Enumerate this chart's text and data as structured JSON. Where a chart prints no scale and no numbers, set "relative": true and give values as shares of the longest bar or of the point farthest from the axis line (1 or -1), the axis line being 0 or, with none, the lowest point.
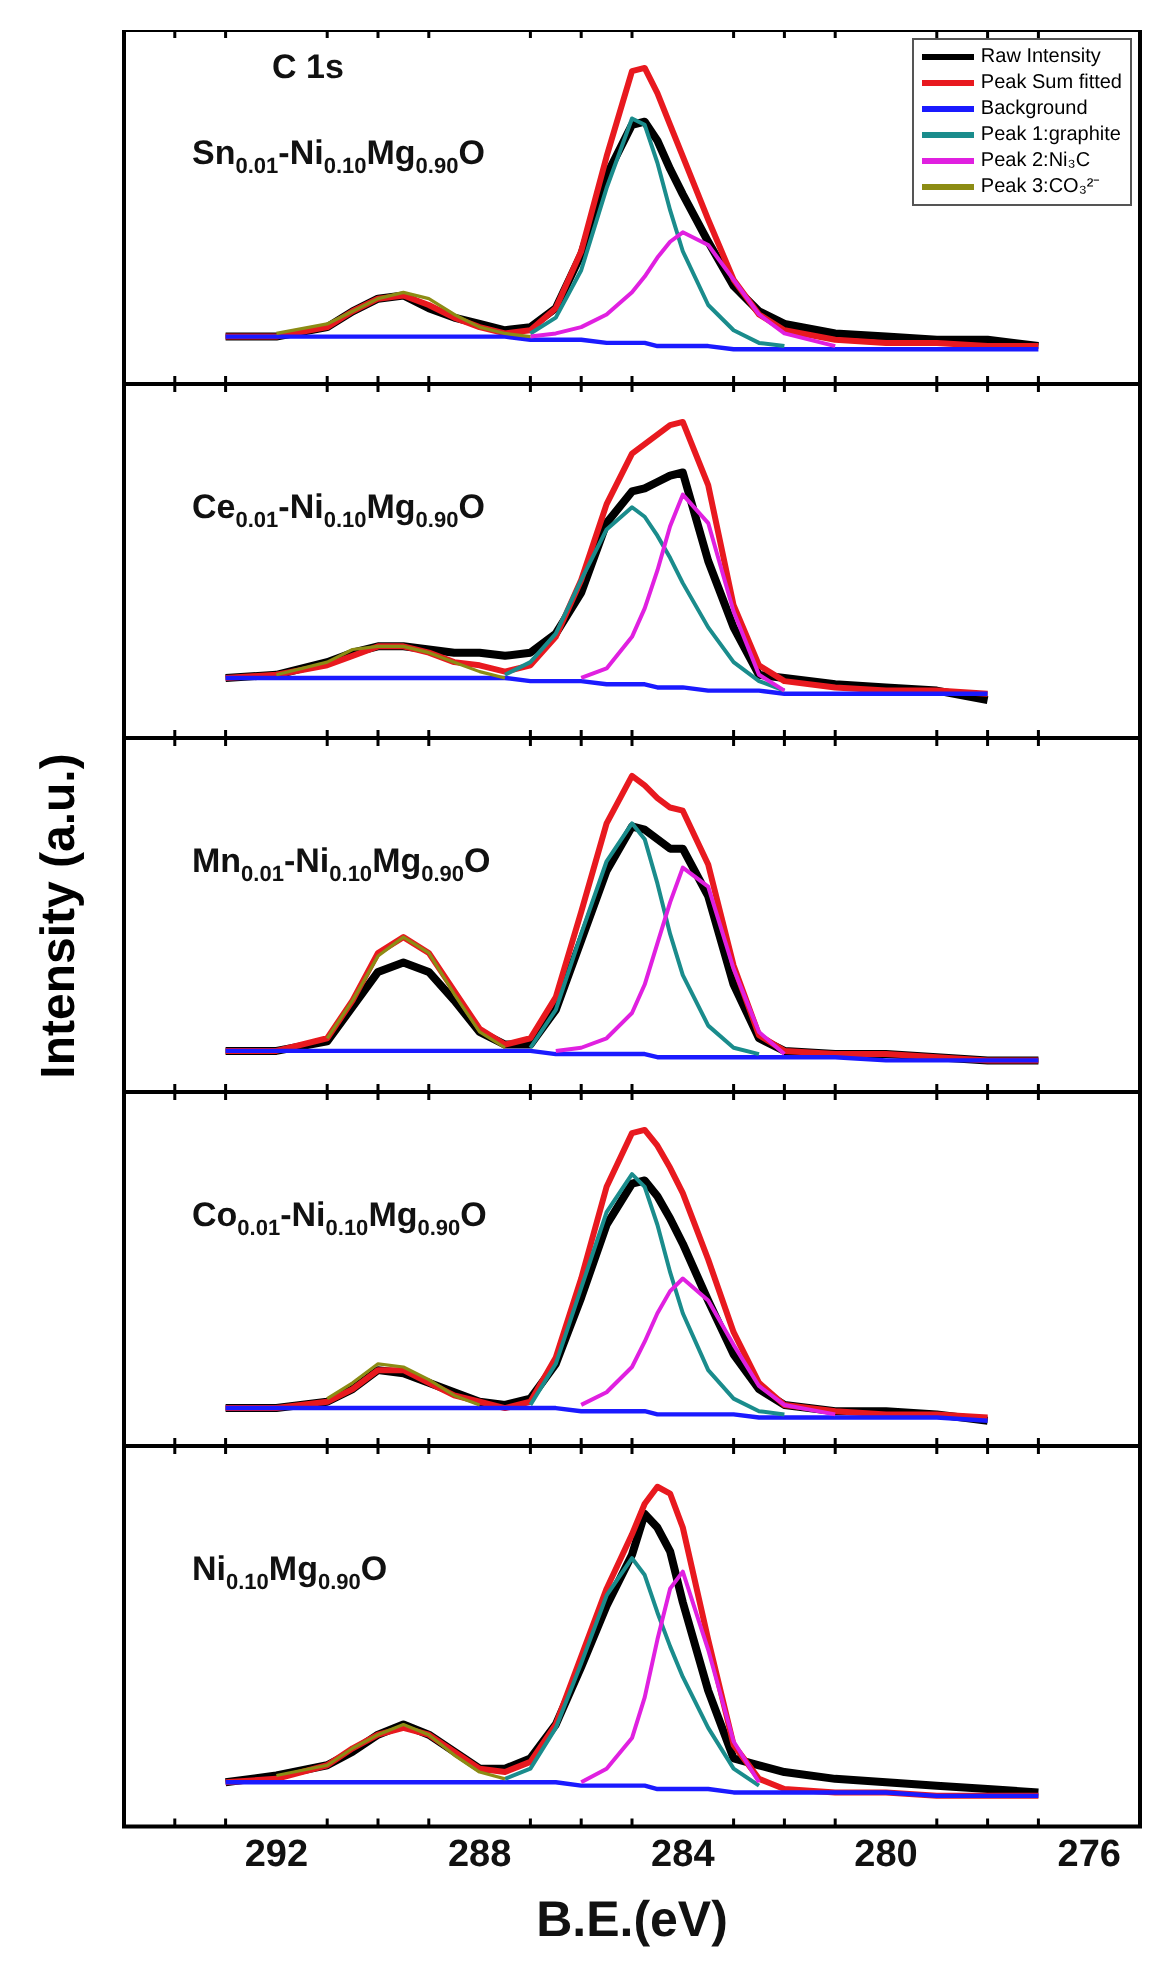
{
  "chart_data": [
    {
      "type": "line",
      "relative": true,
      "tick_labels": false,
      "legend": "top right",
      "annotations": [
        "C 1s",
        "Sn$_{0.01}$-Ni$_{0.10}$Mg$_{0.90}$O"
      ],
      "x": [
        293,
        292,
        291,
        290.5,
        290,
        289.5,
        289,
        288.5,
        288,
        287.5,
        287,
        286.5,
        286,
        285.5,
        285,
        284.75,
        284.5,
        284.25,
        284,
        283.5,
        283,
        282.5,
        282,
        281,
        280,
        279,
        278,
        277
      ],
      "xlim": [
        295,
        275
      ],
      "xticks": [
        {
          "value": 294,
          "label": null
        },
        {
          "value": 293,
          "label": null
        },
        292,
        {
          "value": 291,
          "label": null
        },
        {
          "value": 290,
          "label": null
        },
        {
          "value": 289,
          "label": null
        },
        288,
        {
          "value": 287,
          "label": null
        },
        {
          "value": 286,
          "label": null
        },
        {
          "value": 285,
          "label": null
        },
        284,
        {
          "value": 283,
          "label": null
        },
        {
          "value": 282,
          "label": null
        },
        {
          "value": 281,
          "label": null
        },
        280,
        {
          "value": 279,
          "label": null
        },
        {
          "value": 278,
          "label": null
        },
        {
          "value": 277,
          "label": null
        },
        276
      ],
      "series": [
        {
          "name": "Raw Intensity",
          "color": "#000000",
          "values": [
            0.15,
            0.15,
            0.18,
            0.23,
            0.27,
            0.28,
            0.24,
            0.21,
            0.19,
            0.17,
            0.18,
            0.24,
            0.41,
            0.66,
            0.82,
            0.83,
            0.77,
            0.68,
            0.6,
            0.45,
            0.31,
            0.23,
            0.19,
            0.16,
            0.15,
            0.14,
            0.14,
            0.12
          ]
        },
        {
          "name": "Peak Sum fitted",
          "color": "#e8191f",
          "values": [
            0.15,
            0.15,
            0.18,
            0.23,
            0.27,
            0.28,
            0.25,
            0.21,
            0.18,
            0.16,
            0.17,
            0.24,
            0.42,
            0.72,
            0.99,
            1.0,
            0.92,
            0.82,
            0.72,
            0.52,
            0.33,
            0.22,
            0.17,
            0.14,
            0.13,
            0.13,
            0.12,
            0.12
          ]
        },
        {
          "name": "Background",
          "color": "#1a1aff",
          "values": [
            0.15,
            0.15,
            0.15,
            0.15,
            0.15,
            0.15,
            0.15,
            0.15,
            0.15,
            0.15,
            0.14,
            0.14,
            0.14,
            0.13,
            0.13,
            0.13,
            0.12,
            0.12,
            0.12,
            0.12,
            0.11,
            0.11,
            0.11,
            0.11,
            0.11,
            0.11,
            0.11,
            0.11
          ]
        },
        {
          "name": "Peak 1:graphite",
          "color": "#1a8c8c",
          "values": [
            null,
            null,
            null,
            null,
            null,
            null,
            null,
            null,
            null,
            null,
            0.16,
            0.21,
            0.36,
            0.62,
            0.84,
            0.82,
            0.7,
            0.55,
            0.42,
            0.25,
            0.17,
            0.13,
            0.12,
            null,
            null,
            null,
            null,
            null
          ]
        },
        {
          "name": "Peak 2:Ni₃C",
          "color": "#e020e0",
          "values": [
            null,
            null,
            null,
            null,
            null,
            null,
            null,
            null,
            null,
            null,
            0.15,
            0.16,
            0.18,
            0.22,
            0.29,
            0.34,
            0.4,
            0.45,
            0.48,
            0.44,
            0.33,
            0.22,
            0.16,
            0.12,
            null,
            null,
            null,
            null
          ]
        },
        {
          "name": "Peak 3:CO₃²⁻",
          "color": "#8c8c14",
          "values": [
            null,
            0.16,
            0.19,
            0.23,
            0.27,
            0.29,
            0.27,
            0.22,
            0.18,
            0.16,
            0.15,
            null,
            null,
            null,
            null,
            null,
            null,
            null,
            null,
            null,
            null,
            null,
            null,
            null,
            null,
            null,
            null,
            null
          ]
        }
      ]
    },
    {
      "type": "line",
      "relative": true,
      "tick_labels": false,
      "annotations": [
        "Ce$_{0.01}$-Ni$_{0.10}$Mg$_{0.90}$O"
      ],
      "x": [
        293,
        292,
        291,
        290.5,
        290,
        289.5,
        289,
        288.5,
        288,
        287.5,
        287,
        286.5,
        286,
        285.5,
        285,
        284.75,
        284.5,
        284.25,
        284,
        283.5,
        283,
        282.5,
        282,
        281,
        280,
        279,
        278
      ],
      "xlim": [
        295,
        275
      ],
      "xticks": [
        {
          "value": 294,
          "label": null
        },
        {
          "value": 293,
          "label": null
        },
        292,
        {
          "value": 291,
          "label": null
        },
        {
          "value": 290,
          "label": null
        },
        {
          "value": 289,
          "label": null
        },
        288,
        {
          "value": 287,
          "label": null
        },
        {
          "value": 286,
          "label": null
        },
        {
          "value": 285,
          "label": null
        },
        284,
        {
          "value": 283,
          "label": null
        },
        {
          "value": 282,
          "label": null
        },
        {
          "value": 281,
          "label": null
        },
        280,
        {
          "value": 279,
          "label": null
        },
        {
          "value": 278,
          "label": null
        },
        {
          "value": 277,
          "label": null
        },
        276
      ],
      "series": [
        {
          "color": "#000000",
          "values": [
            0.19,
            0.2,
            0.24,
            0.27,
            0.29,
            0.29,
            0.28,
            0.27,
            0.27,
            0.26,
            0.27,
            0.33,
            0.46,
            0.68,
            0.78,
            0.79,
            0.81,
            0.83,
            0.84,
            0.56,
            0.35,
            0.2,
            0.19,
            0.17,
            0.16,
            0.15,
            0.12
          ]
        },
        {
          "color": "#e8191f",
          "values": [
            0.19,
            0.2,
            0.23,
            0.26,
            0.29,
            0.29,
            0.27,
            0.24,
            0.23,
            0.21,
            0.23,
            0.32,
            0.5,
            0.74,
            0.9,
            0.93,
            0.96,
            0.99,
            1.0,
            0.8,
            0.42,
            0.23,
            0.18,
            0.16,
            0.15,
            0.15,
            0.14
          ]
        },
        {
          "color": "#1a1aff",
          "values": [
            0.19,
            0.19,
            0.19,
            0.19,
            0.19,
            0.19,
            0.19,
            0.19,
            0.19,
            0.19,
            0.18,
            0.18,
            0.18,
            0.17,
            0.17,
            0.17,
            0.16,
            0.16,
            0.16,
            0.15,
            0.15,
            0.15,
            0.14,
            0.14,
            0.14,
            0.14,
            0.14
          ]
        },
        {
          "color": "#1a8c8c",
          "values": [
            null,
            null,
            null,
            null,
            null,
            null,
            null,
            null,
            null,
            0.2,
            0.24,
            0.33,
            0.5,
            0.66,
            0.73,
            0.7,
            0.64,
            0.57,
            0.49,
            0.35,
            0.24,
            0.18,
            0.15,
            null,
            null,
            null,
            null
          ]
        },
        {
          "color": "#e020e0",
          "values": [
            null,
            null,
            null,
            null,
            null,
            null,
            null,
            null,
            null,
            null,
            null,
            null,
            0.19,
            0.22,
            0.32,
            0.41,
            0.53,
            0.67,
            0.77,
            0.68,
            0.4,
            0.2,
            0.15,
            null,
            null,
            null,
            null
          ]
        },
        {
          "color": "#8c8c14",
          "values": [
            null,
            0.2,
            0.24,
            0.28,
            0.29,
            0.29,
            0.27,
            0.24,
            0.21,
            0.19,
            null,
            null,
            null,
            null,
            null,
            null,
            null,
            null,
            null,
            null,
            null,
            null,
            null,
            null,
            null,
            null,
            null
          ]
        }
      ]
    },
    {
      "type": "line",
      "relative": true,
      "tick_labels": false,
      "ylabel": "Intensity (a.u.)",
      "annotations": [
        "Mn$_{0.01}$-Ni$_{0.10}$Mg$_{0.90}$O"
      ],
      "x": [
        293,
        292,
        291,
        290.5,
        290,
        289.5,
        289,
        288.5,
        288,
        287.5,
        287,
        286.5,
        286,
        285.5,
        285,
        284.75,
        284.5,
        284.25,
        284,
        283.5,
        283,
        282.5,
        282,
        281,
        280,
        279,
        278,
        277
      ],
      "xlim": [
        295,
        275
      ],
      "xticks": [
        {
          "value": 294,
          "label": null
        },
        {
          "value": 293,
          "label": null
        },
        292,
        {
          "value": 291,
          "label": null
        },
        {
          "value": 290,
          "label": null
        },
        {
          "value": 289,
          "label": null
        },
        288,
        {
          "value": 287,
          "label": null
        },
        {
          "value": 286,
          "label": null
        },
        {
          "value": 285,
          "label": null
        },
        284,
        {
          "value": 283,
          "label": null
        },
        {
          "value": 282,
          "label": null
        },
        {
          "value": 281,
          "label": null
        },
        280,
        {
          "value": 279,
          "label": null
        },
        {
          "value": 278,
          "label": null
        },
        {
          "value": 277,
          "label": null
        },
        276
      ],
      "series": [
        {
          "color": "#000000",
          "values": [
            0.13,
            0.13,
            0.16,
            0.27,
            0.38,
            0.41,
            0.38,
            0.29,
            0.19,
            0.15,
            0.15,
            0.26,
            0.48,
            0.7,
            0.84,
            0.83,
            0.8,
            0.77,
            0.77,
            0.62,
            0.34,
            0.17,
            0.13,
            0.12,
            0.12,
            0.11,
            0.1,
            0.1
          ]
        },
        {
          "color": "#e8191f",
          "values": [
            0.13,
            0.13,
            0.17,
            0.29,
            0.44,
            0.49,
            0.44,
            0.32,
            0.2,
            0.15,
            0.17,
            0.3,
            0.57,
            0.85,
            1.0,
            0.97,
            0.93,
            0.9,
            0.89,
            0.72,
            0.4,
            0.18,
            0.13,
            0.12,
            0.12,
            0.11,
            0.1,
            0.1
          ]
        },
        {
          "color": "#1a1aff",
          "values": [
            0.13,
            0.13,
            0.13,
            0.13,
            0.13,
            0.13,
            0.13,
            0.13,
            0.13,
            0.13,
            0.13,
            0.12,
            0.12,
            0.12,
            0.12,
            0.12,
            0.11,
            0.11,
            0.11,
            0.11,
            0.11,
            0.11,
            0.11,
            0.11,
            0.1,
            0.1,
            0.1,
            0.1
          ]
        },
        {
          "color": "#1a8c8c",
          "values": [
            null,
            null,
            null,
            null,
            null,
            null,
            null,
            null,
            null,
            null,
            0.14,
            0.26,
            0.5,
            0.73,
            0.85,
            0.8,
            0.66,
            0.5,
            0.37,
            0.21,
            0.14,
            0.12,
            null,
            null,
            null,
            null,
            null,
            null
          ]
        },
        {
          "color": "#e020e0",
          "values": [
            null,
            null,
            null,
            null,
            null,
            null,
            null,
            null,
            null,
            null,
            null,
            0.13,
            0.14,
            0.17,
            0.25,
            0.34,
            0.47,
            0.6,
            0.71,
            0.65,
            0.39,
            0.19,
            0.12,
            null,
            null,
            null,
            null,
            null
          ]
        },
        {
          "color": "#8c8c14",
          "values": [
            null,
            null,
            0.17,
            0.29,
            0.43,
            0.49,
            0.44,
            0.31,
            0.19,
            0.14,
            null,
            null,
            null,
            null,
            null,
            null,
            null,
            null,
            null,
            null,
            null,
            null,
            null,
            null,
            null,
            null,
            null,
            null
          ]
        }
      ]
    },
    {
      "type": "line",
      "relative": true,
      "tick_labels": false,
      "annotations": [
        "Co$_{0.01}$-Ni$_{0.10}$Mg$_{0.90}$O"
      ],
      "x": [
        293,
        292,
        291,
        290.5,
        290,
        289.5,
        289,
        288.5,
        288,
        287.5,
        287,
        286.5,
        286,
        285.5,
        285,
        284.75,
        284.5,
        284.25,
        284,
        283.5,
        283,
        282.5,
        282,
        281,
        280,
        279,
        278
      ],
      "xlim": [
        295,
        275
      ],
      "xticks": [
        {
          "value": 294,
          "label": null
        },
        {
          "value": 293,
          "label": null
        },
        292,
        {
          "value": 291,
          "label": null
        },
        {
          "value": 290,
          "label": null
        },
        {
          "value": 289,
          "label": null
        },
        288,
        {
          "value": 287,
          "label": null
        },
        {
          "value": 286,
          "label": null
        },
        {
          "value": 285,
          "label": null
        },
        284,
        {
          "value": 283,
          "label": null
        },
        {
          "value": 282,
          "label": null
        },
        {
          "value": 281,
          "label": null
        },
        280,
        {
          "value": 279,
          "label": null
        },
        {
          "value": 278,
          "label": null
        },
        {
          "value": 277,
          "label": null
        },
        276
      ],
      "series": [
        {
          "color": "#000000",
          "values": [
            0.12,
            0.12,
            0.14,
            0.18,
            0.24,
            0.23,
            0.2,
            0.17,
            0.14,
            0.13,
            0.15,
            0.26,
            0.47,
            0.7,
            0.83,
            0.84,
            0.79,
            0.72,
            0.64,
            0.46,
            0.29,
            0.18,
            0.13,
            0.11,
            0.11,
            0.1,
            0.08
          ]
        },
        {
          "color": "#e8191f",
          "values": [
            0.12,
            0.12,
            0.14,
            0.18,
            0.24,
            0.24,
            0.2,
            0.16,
            0.14,
            0.12,
            0.14,
            0.28,
            0.53,
            0.82,
            0.99,
            1.0,
            0.95,
            0.88,
            0.8,
            0.59,
            0.36,
            0.2,
            0.13,
            0.11,
            0.1,
            0.1,
            0.09
          ]
        },
        {
          "color": "#1a1aff",
          "values": [
            0.12,
            0.12,
            0.12,
            0.12,
            0.12,
            0.12,
            0.12,
            0.12,
            0.12,
            0.12,
            0.12,
            0.12,
            0.11,
            0.11,
            0.11,
            0.11,
            0.1,
            0.1,
            0.1,
            0.1,
            0.1,
            0.09,
            0.09,
            0.09,
            0.09,
            0.09,
            0.08
          ]
        },
        {
          "color": "#1a8c8c",
          "values": [
            null,
            null,
            null,
            null,
            null,
            null,
            null,
            null,
            null,
            null,
            0.13,
            0.26,
            0.5,
            0.74,
            0.86,
            0.82,
            0.7,
            0.55,
            0.42,
            0.24,
            0.15,
            0.11,
            0.1,
            null,
            null,
            null,
            null
          ]
        },
        {
          "color": "#e020e0",
          "values": [
            null,
            null,
            null,
            null,
            null,
            null,
            null,
            null,
            null,
            null,
            null,
            null,
            0.13,
            0.17,
            0.25,
            0.33,
            0.42,
            0.49,
            0.53,
            0.46,
            0.32,
            0.19,
            0.13,
            0.1,
            null,
            null,
            null
          ]
        },
        {
          "color": "#8c8c14",
          "values": [
            null,
            null,
            0.15,
            0.2,
            0.26,
            0.25,
            0.21,
            0.16,
            0.13,
            null,
            null,
            null,
            null,
            null,
            null,
            null,
            null,
            null,
            null,
            null,
            null,
            null,
            null,
            null,
            null,
            null,
            null
          ]
        }
      ]
    },
    {
      "type": "line",
      "relative": true,
      "tick_labels": "x",
      "xlabel": "B.E.(eV)",
      "annotations": [
        "Ni$_{0.10}$Mg$_{0.90}$O"
      ],
      "x": [
        293,
        292,
        291,
        290.5,
        290,
        289.5,
        289,
        288.5,
        288,
        287.5,
        287,
        286.5,
        286,
        285.5,
        285,
        284.75,
        284.5,
        284.25,
        284,
        283.5,
        283,
        282.5,
        282,
        281,
        280,
        279,
        278,
        277
      ],
      "xlim": [
        295,
        275
      ],
      "xticks": [
        {
          "value": 294,
          "label": null
        },
        {
          "value": 293,
          "label": null
        },
        292,
        {
          "value": 291,
          "label": null
        },
        {
          "value": 290,
          "label": null
        },
        {
          "value": 289,
          "label": null
        },
        288,
        {
          "value": 287,
          "label": null
        },
        {
          "value": 286,
          "label": null
        },
        {
          "value": 285,
          "label": null
        },
        284,
        {
          "value": 283,
          "label": null
        },
        {
          "value": 282,
          "label": null
        },
        {
          "value": 281,
          "label": null
        },
        280,
        {
          "value": 279,
          "label": null
        },
        {
          "value": 278,
          "label": null
        },
        {
          "value": 277,
          "label": null
        },
        276
      ],
      "series": [
        {
          "color": "#000000",
          "values": [
            0.13,
            0.15,
            0.18,
            0.22,
            0.27,
            0.3,
            0.27,
            0.22,
            0.17,
            0.17,
            0.2,
            0.3,
            0.47,
            0.65,
            0.8,
            0.92,
            0.88,
            0.81,
            0.66,
            0.4,
            0.2,
            0.18,
            0.16,
            0.14,
            0.13,
            0.12,
            0.11,
            0.1
          ]
        },
        {
          "color": "#e8191f",
          "values": [
            0.13,
            0.14,
            0.18,
            0.23,
            0.27,
            0.29,
            0.27,
            0.22,
            0.17,
            0.16,
            0.19,
            0.3,
            0.5,
            0.7,
            0.86,
            0.95,
            1.0,
            0.98,
            0.88,
            0.55,
            0.24,
            0.14,
            0.11,
            0.1,
            0.1,
            0.09,
            0.09,
            0.09
          ]
        },
        {
          "color": "#1a1aff",
          "values": [
            0.13,
            0.13,
            0.13,
            0.13,
            0.13,
            0.13,
            0.13,
            0.13,
            0.13,
            0.13,
            0.13,
            0.13,
            0.12,
            0.12,
            0.12,
            0.12,
            0.11,
            0.11,
            0.11,
            0.11,
            0.1,
            0.1,
            0.1,
            0.1,
            0.1,
            0.09,
            0.09,
            0.09
          ]
        },
        {
          "color": "#1a8c8c",
          "values": [
            null,
            null,
            null,
            null,
            null,
            null,
            null,
            null,
            null,
            0.14,
            0.17,
            0.29,
            0.48,
            0.68,
            0.79,
            0.74,
            0.63,
            0.53,
            0.44,
            0.29,
            0.17,
            0.12,
            null,
            null,
            null,
            null,
            null,
            null
          ]
        },
        {
          "color": "#e020e0",
          "values": [
            null,
            null,
            null,
            null,
            null,
            null,
            null,
            null,
            null,
            null,
            null,
            null,
            0.13,
            0.17,
            0.26,
            0.38,
            0.55,
            0.7,
            0.75,
            0.52,
            0.25,
            0.13,
            null,
            null,
            null,
            null,
            null,
            null
          ]
        },
        {
          "color": "#8c8c14",
          "values": [
            null,
            0.15,
            0.18,
            0.23,
            0.27,
            0.3,
            0.27,
            0.21,
            0.16,
            0.14,
            null,
            null,
            null,
            null,
            null,
            null,
            null,
            null,
            null,
            null,
            null,
            null,
            null,
            null,
            null,
            null,
            null,
            null
          ]
        }
      ]
    }
  ]
}
